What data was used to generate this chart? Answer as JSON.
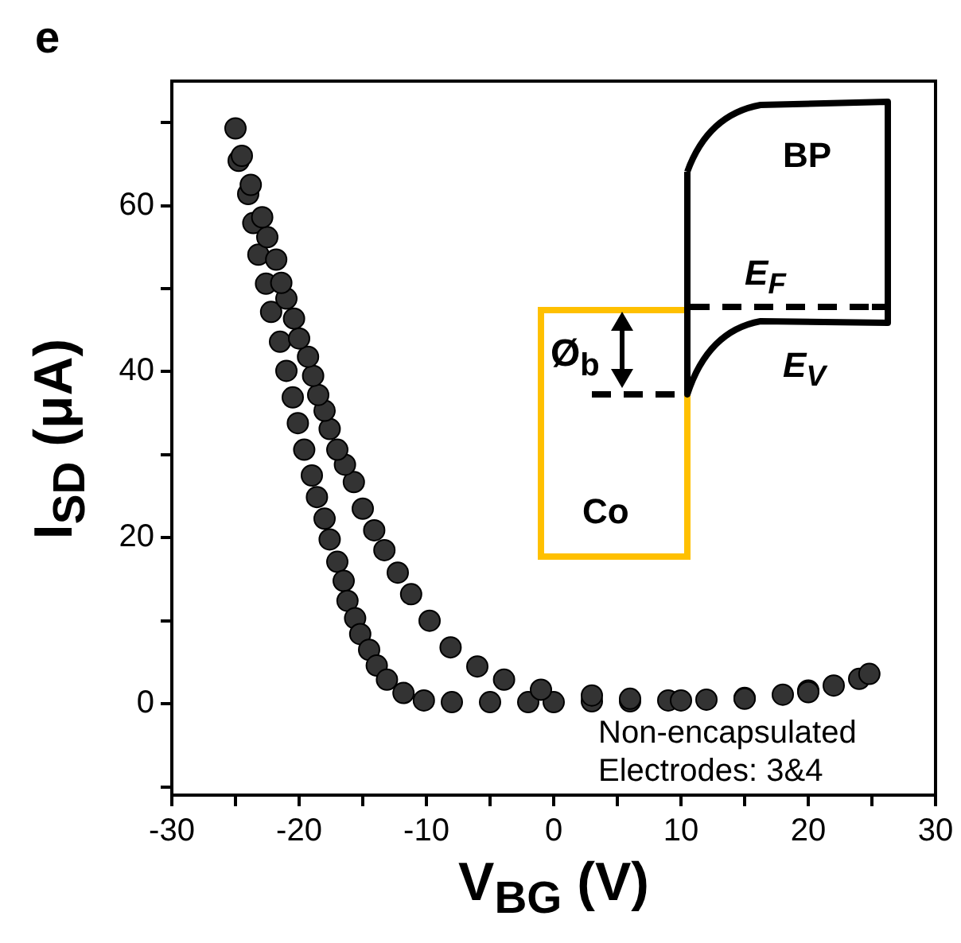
{
  "chart_data": {
    "type": "scatter",
    "title": "e",
    "xlabel": "V$_{BG}$ (V)",
    "ylabel": "I$_{SD}$ (μA)",
    "annotations": [
      "Non-encapsulated",
      "Electrodes: 3&4",
      "BP",
      "E$_{F}$",
      "E$_{V}$",
      "Ø$_{b}$",
      "Co"
    ],
    "xlim": [
      -30,
      30
    ],
    "ylim": [
      -11,
      75
    ],
    "xticks": [
      -30,
      {
        "value": -25,
        "label": null
      },
      -20,
      {
        "value": -15,
        "label": null
      },
      -10,
      {
        "value": -5,
        "label": null
      },
      0,
      {
        "value": 5,
        "label": null
      },
      10,
      {
        "value": 15,
        "label": null
      },
      20,
      {
        "value": 25,
        "label": null
      },
      30
    ],
    "yticks": [
      {
        "value": -10,
        "label": null
      },
      0,
      {
        "value": 10,
        "label": null
      },
      20,
      {
        "value": 30,
        "label": null
      },
      40,
      {
        "value": 50,
        "label": null
      },
      60,
      {
        "value": 70,
        "label": null
      }
    ],
    "marker": "circle",
    "series": [
      {
        "color": "#333333",
        "x": [
          -25,
          -24.75,
          -24,
          -23.6,
          -23.2,
          -22.6,
          -22.2,
          -21.5,
          -21,
          -20.5,
          -20.1,
          -19.6,
          -19,
          -18.6,
          -18,
          -17.6,
          -17,
          -16.5,
          -16.2,
          -15.6,
          -15.2,
          -14.5,
          -13.9,
          -13.1,
          -11.8,
          -10.2,
          -8,
          -5,
          -2,
          0,
          3,
          6,
          9,
          12,
          15,
          18,
          20,
          22,
          24,
          24.8,
          20,
          15,
          10,
          6,
          3,
          -1,
          -3.9,
          -6,
          -8.1,
          -9.75,
          -11.2,
          -12.25,
          -13.3,
          -14.1,
          -15,
          -15.7,
          -16.4,
          -17,
          -17.6,
          -18,
          -18.5,
          -18.9,
          -19.3,
          -20,
          -20.4,
          -21,
          -21.4,
          -21.8,
          -22.5,
          -22.9,
          -23.8,
          -24.5
        ],
        "values": [
          69.3,
          65.4,
          61.4,
          57.9,
          54.1,
          50.6,
          47.2,
          43.6,
          40.1,
          36.9,
          33.8,
          30.6,
          27.5,
          24.9,
          22.3,
          19.8,
          17.1,
          14.8,
          12.4,
          10.3,
          8.4,
          6.5,
          4.6,
          2.9,
          1.3,
          0.4,
          0.2,
          0.2,
          0.2,
          0.2,
          0.3,
          0.3,
          0.4,
          0.5,
          0.7,
          1.1,
          1.6,
          2.2,
          3.0,
          3.6,
          1.4,
          0.6,
          0.4,
          0.6,
          1.0,
          1.7,
          2.9,
          4.5,
          6.8,
          10,
          13.2,
          15.8,
          18.5,
          20.9,
          23.5,
          26.7,
          28.8,
          30.6,
          33.1,
          35.3,
          37.2,
          39.5,
          41.8,
          44,
          46.4,
          48.8,
          50.7,
          53.5,
          56.2,
          58.6,
          62.5,
          66
        ]
      }
    ]
  }
}
